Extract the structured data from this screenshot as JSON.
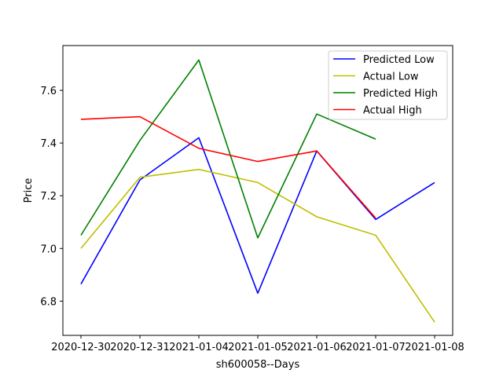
{
  "chart_data": {
    "type": "line",
    "title": "",
    "xlabel": "sh600058--Days",
    "ylabel": "Price",
    "categories": [
      "2020-12-30",
      "2020-12-31",
      "2021-01-04",
      "2021-01-05",
      "2021-01-06",
      "2021-01-07",
      "2021-01-08"
    ],
    "ylim": [
      6.67,
      7.77
    ],
    "yticks": [
      6.8,
      7.0,
      7.2,
      7.4,
      7.6
    ],
    "ytick_labels": [
      "6.8",
      "7.0",
      "7.2",
      "7.4",
      "7.6"
    ],
    "grid": false,
    "legend_position": "upper right",
    "series": [
      {
        "name": "Predicted Low",
        "color": "#0000ff",
        "values": [
          6.865,
          7.26,
          7.42,
          6.83,
          7.37,
          7.11,
          7.25
        ]
      },
      {
        "name": "Actual Low",
        "color": "#bfbf00",
        "values": [
          7.0,
          7.27,
          7.3,
          7.25,
          7.12,
          7.05,
          6.72
        ]
      },
      {
        "name": "Predicted High",
        "color": "#008000",
        "values": [
          7.05,
          7.41,
          7.715,
          7.04,
          7.51,
          7.415,
          null
        ]
      },
      {
        "name": "Actual High",
        "color": "#ff0000",
        "values": [
          7.49,
          7.5,
          7.38,
          7.33,
          7.37,
          7.115,
          null
        ]
      }
    ]
  }
}
